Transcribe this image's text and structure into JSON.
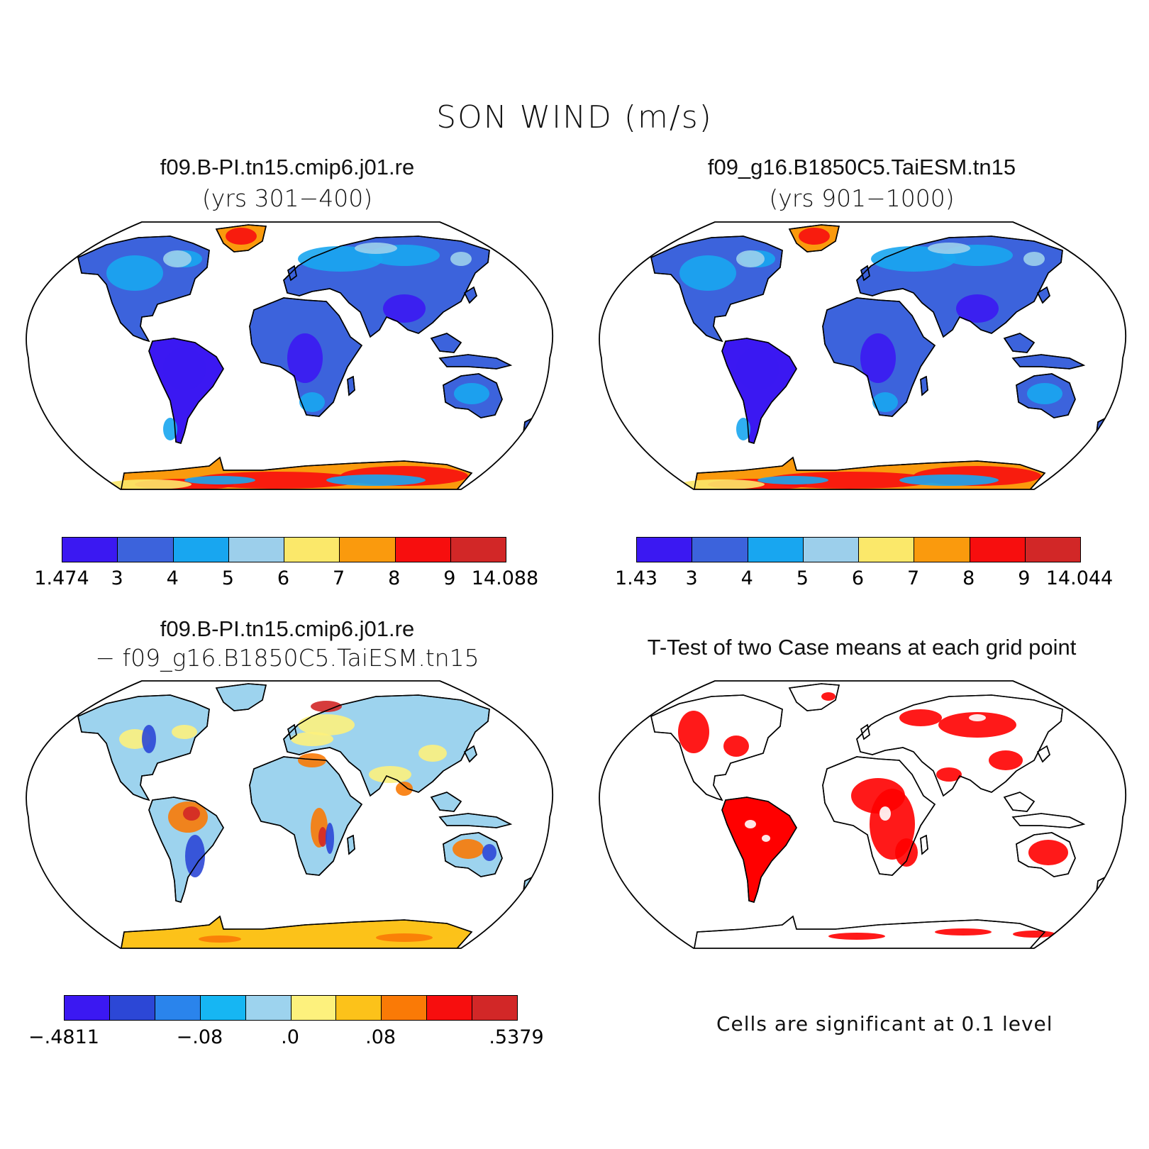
{
  "title": "SON WIND (m/s)",
  "panels": {
    "top_left": {
      "title": "f09.B-PI.tn15.cmip6.j01.re",
      "subtitle": "(yrs 301−400)",
      "colorbar": {
        "colors": [
          "#3b18f2",
          "#3c63dc",
          "#18a6f0",
          "#9ccfeb",
          "#fbe86a",
          "#fa9a0d",
          "#f70e0e",
          "#d22727"
        ],
        "labels": [
          "1.474",
          "3",
          "4",
          "5",
          "6",
          "7",
          "8",
          "9",
          "14.088"
        ]
      }
    },
    "top_right": {
      "title": "f09_g16.B1850C5.TaiESM.tn15",
      "subtitle": "(yrs 901−1000)",
      "colorbar": {
        "colors": [
          "#3b18f2",
          "#3c63dc",
          "#18a6f0",
          "#9ccfeb",
          "#fbe86a",
          "#fa9a0d",
          "#f70e0e",
          "#d22727"
        ],
        "labels": [
          "1.43",
          "3",
          "4",
          "5",
          "6",
          "7",
          "8",
          "9",
          "14.044"
        ]
      }
    },
    "bottom_left": {
      "title": "f09.B-PI.tn15.cmip6.j01.re",
      "subtitle": "− f09_g16.B1850C5.TaiESM.tn15",
      "colorbar": {
        "colors": [
          "#3b18f2",
          "#2c47d6",
          "#2a84ec",
          "#16b6f3",
          "#9dd3ee",
          "#fdf17d",
          "#fcc21a",
          "#fa7a06",
          "#f70e0e",
          "#d22727"
        ],
        "labels": [
          "−.4811",
          "−.08",
          ".0",
          ".08",
          ".5379"
        ],
        "label_positions": [
          0,
          3,
          5,
          7,
          10
        ]
      }
    },
    "bottom_right": {
      "title": "T-Test of two Case means at each grid point",
      "note": "Cells are significant at 0.1 level",
      "significance_color": "#ff0000"
    }
  },
  "map_colors": {
    "land_low": "#3b18f2",
    "land_mid": "#3c63dc",
    "land_high": "#18a6f0",
    "land_pale": "#9ccfeb",
    "ice_yellow": "#fbe86a",
    "ice_orange": "#fa9a0d",
    "ice_red": "#f70e0e",
    "ice_dark": "#d22727"
  }
}
